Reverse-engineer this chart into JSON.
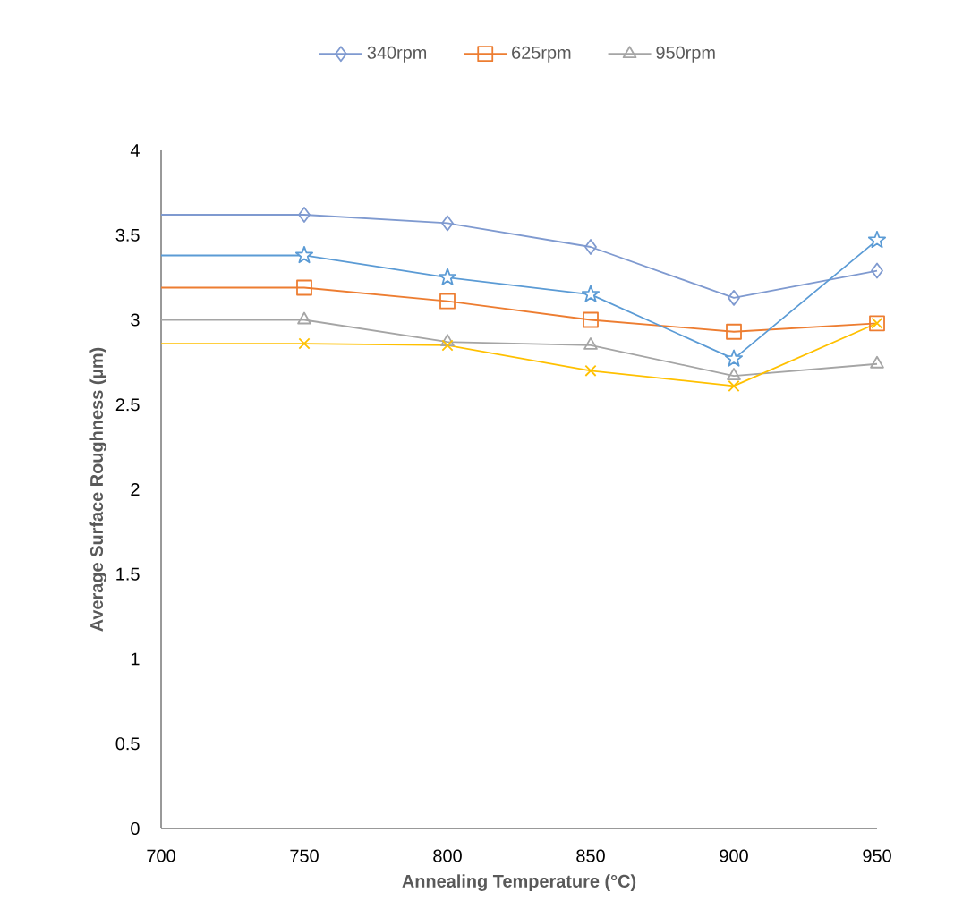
{
  "chart_data": {
    "type": "line",
    "xlabel": "Annealing Temperature (°C)",
    "ylabel": "Average Surface Roughness (µm)",
    "x": [
      700,
      750,
      800,
      850,
      900,
      950
    ],
    "xlim": [
      700,
      950
    ],
    "xticks": [
      700,
      750,
      800,
      850,
      900,
      950
    ],
    "ylim": [
      0,
      4
    ],
    "yticks": [
      0,
      0.5,
      1,
      1.5,
      2,
      2.5,
      3,
      3.5,
      4
    ],
    "grid": false,
    "legend": "top",
    "series": [
      {
        "name": "340rpm",
        "color": "#7f9ad0",
        "marker": "diamond",
        "values": [
          3.62,
          3.62,
          3.57,
          3.43,
          3.13,
          3.29
        ]
      },
      {
        "name": "625rpm",
        "color": "#ed7d31",
        "marker": "square",
        "values": [
          3.19,
          3.19,
          3.11,
          3.0,
          2.93,
          2.98
        ]
      },
      {
        "name": "950rpm",
        "color": "#a5a5a5",
        "marker": "triangle",
        "values": [
          3.0,
          3.0,
          2.87,
          2.85,
          2.67,
          2.74
        ]
      },
      {
        "color": "#5b9bd5",
        "marker": "star",
        "values": [
          3.38,
          3.38,
          3.25,
          3.15,
          2.77,
          3.47
        ]
      },
      {
        "color": "#ffc000",
        "marker": "cross",
        "values": [
          2.86,
          2.86,
          2.85,
          2.7,
          2.61,
          2.98
        ]
      }
    ]
  }
}
